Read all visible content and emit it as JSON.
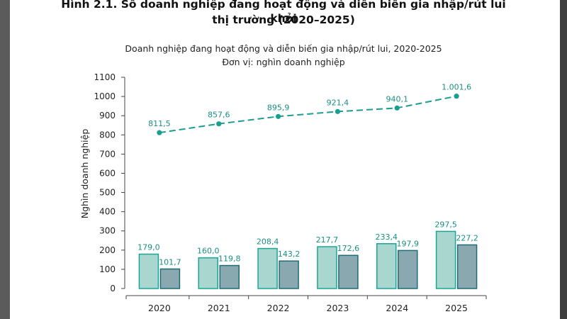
{
  "figure": {
    "title_line1": "Hình 2.1. Số doanh nghiệp đang hoạt động và diễn biến gia nhập/rút lui khỏi",
    "title_line2": "thị trường (2020–2025)"
  },
  "colors": {
    "line": "#1a9e8f",
    "bar_enter_fill": "#a9d7d0",
    "bar_enter_stroke": "#1aa595",
    "bar_exit_fill": "#8aa8b0",
    "bar_exit_stroke": "#1d6b77",
    "label_text": "#1a8f84",
    "axis": "#444444"
  },
  "chart_data": {
    "type": "bar+line",
    "title": "Doanh nghiệp đang hoạt động và diễn biến gia nhập/rút lui, 2020-2025",
    "subtitle": "Đơn vị: nghìn doanh nghiệp",
    "ylabel": "Nghìn doanh nghiệp",
    "xlabel": "",
    "categories": [
      "2020",
      "2021",
      "2022",
      "2023",
      "2024",
      "2025"
    ],
    "ylim": [
      0,
      1100
    ],
    "yticks": [
      0,
      100,
      200,
      300,
      400,
      500,
      600,
      700,
      800,
      900,
      1000,
      1100
    ],
    "legend": "none",
    "grid": false,
    "line_series": {
      "values": [
        811.5,
        857.6,
        895.9,
        921.4,
        940.1,
        1001.6
      ],
      "labels": [
        "811,5",
        "857,6",
        "895,9",
        "921,4",
        "940,1",
        "1.001,6"
      ]
    },
    "bar_series": [
      {
        "values": [
          179.0,
          160.0,
          208.4,
          217.7,
          233.4,
          297.5
        ],
        "labels": [
          "179,0",
          "160,0",
          "208,4",
          "217,7",
          "233,4",
          "297,5"
        ]
      },
      {
        "values": [
          101.7,
          119.8,
          143.2,
          172.6,
          197.9,
          227.2
        ],
        "labels": [
          "101,7",
          "119,8",
          "143,2",
          "172,6",
          "197,9",
          "227,2"
        ]
      }
    ]
  }
}
